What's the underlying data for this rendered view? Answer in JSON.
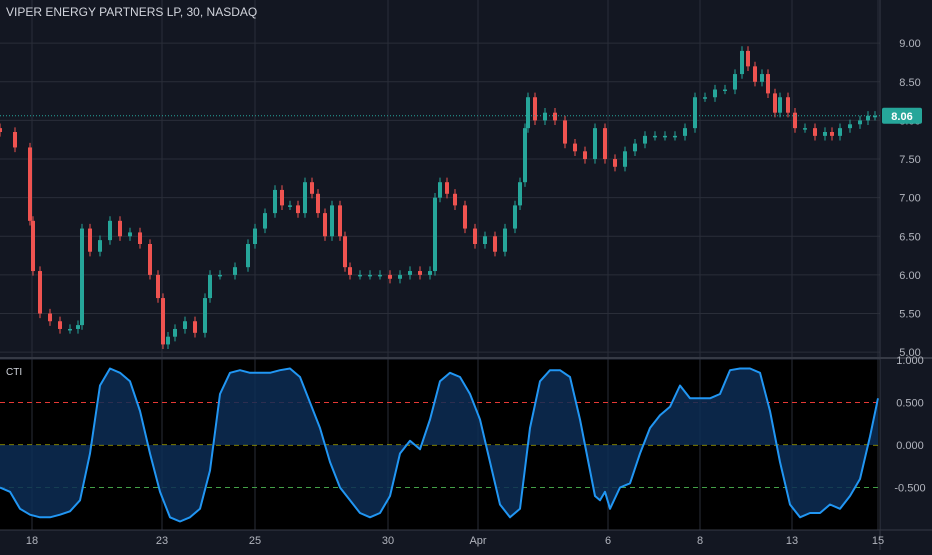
{
  "header": {
    "symbol_title": "VIPER ENERGY PARTNERS LP, 30, NASDAQ"
  },
  "indicator": {
    "label": "CTI"
  },
  "last_price": "8.06",
  "colors": {
    "background": "#131722",
    "grid": "#2a2e39",
    "candle_up": "#26a69a",
    "candle_down": "#ef5350",
    "cti_line": "#2196f3",
    "cti_fill": "#0d2d55",
    "level_red": "#e53935",
    "level_yellow": "#d4d400",
    "level_green": "#43a047",
    "price_line": "#26a69a"
  },
  "chart_data": [
    {
      "type": "candlestick",
      "title": "VIPER ENERGY PARTNERS LP, 30, NASDAQ",
      "xlim": [
        0,
        880
      ],
      "ylim": [
        4.95,
        9.3
      ],
      "y_ticks": [
        "9.00",
        "8.50",
        "8.00",
        "7.50",
        "7.00",
        "6.50",
        "6.00",
        "5.50",
        "5.00"
      ],
      "y_tick_values": [
        9.0,
        8.5,
        8.0,
        7.5,
        7.0,
        6.5,
        6.0,
        5.5,
        5.0
      ],
      "x_ticks": [
        "18",
        "23",
        "25",
        "30",
        "Apr",
        "6",
        "8",
        "13",
        "15"
      ],
      "x_tick_positions": [
        32,
        162,
        255,
        388,
        478,
        608,
        700,
        792,
        878
      ],
      "last_price": 8.06,
      "grid": true,
      "series": [
        {
          "name": "close",
          "x": [
            0,
            15,
            30,
            33,
            40,
            50,
            60,
            70,
            78,
            82,
            90,
            100,
            110,
            120,
            130,
            140,
            150,
            158,
            163,
            168,
            175,
            185,
            195,
            205,
            210,
            220,
            235,
            248,
            255,
            265,
            275,
            282,
            290,
            298,
            305,
            312,
            318,
            325,
            332,
            340,
            345,
            350,
            360,
            370,
            380,
            390,
            400,
            410,
            420,
            430,
            435,
            440,
            447,
            455,
            465,
            475,
            485,
            495,
            505,
            515,
            520,
            525,
            528,
            535,
            545,
            555,
            565,
            575,
            585,
            595,
            605,
            615,
            625,
            635,
            645,
            655,
            665,
            675,
            685,
            695,
            705,
            715,
            725,
            735,
            742,
            748,
            755,
            762,
            768,
            775,
            780,
            788,
            795,
            805,
            815,
            825,
            832,
            840,
            850,
            860,
            868,
            875
          ],
          "values": [
            7.85,
            7.65,
            6.7,
            6.05,
            5.5,
            5.4,
            5.3,
            5.3,
            5.35,
            6.6,
            6.3,
            6.45,
            6.7,
            6.5,
            6.55,
            6.4,
            6.0,
            5.7,
            5.1,
            5.2,
            5.3,
            5.4,
            5.25,
            5.7,
            6.0,
            6.0,
            6.1,
            6.4,
            6.6,
            6.8,
            7.1,
            6.9,
            6.9,
            6.8,
            7.2,
            7.05,
            6.8,
            6.5,
            6.9,
            6.5,
            6.1,
            6.0,
            6.0,
            6.0,
            6.0,
            5.95,
            6.0,
            6.05,
            6.0,
            6.05,
            7.0,
            7.2,
            7.05,
            6.9,
            6.6,
            6.4,
            6.5,
            6.3,
            6.6,
            6.9,
            7.2,
            7.9,
            8.3,
            8.0,
            8.1,
            8.0,
            7.7,
            7.6,
            7.5,
            7.9,
            7.5,
            7.4,
            7.6,
            7.7,
            7.8,
            7.8,
            7.8,
            7.8,
            7.9,
            8.3,
            8.3,
            8.4,
            8.4,
            8.6,
            8.9,
            8.7,
            8.5,
            8.6,
            8.35,
            8.1,
            8.3,
            8.1,
            7.9,
            7.9,
            7.8,
            7.85,
            7.8,
            7.9,
            7.95,
            8.0,
            8.06,
            8.06
          ]
        }
      ]
    },
    {
      "type": "line",
      "title": "CTI",
      "ylim": [
        -1.0,
        1.0
      ],
      "y_ticks": [
        "1.000",
        "0.500",
        "0.000",
        "-0.500"
      ],
      "y_tick_values": [
        1.0,
        0.5,
        0.0,
        -0.5
      ],
      "levels": [
        0.5,
        0.0,
        -0.5
      ],
      "grid": true,
      "series": [
        {
          "name": "CTI",
          "x": [
            0,
            10,
            20,
            30,
            40,
            50,
            60,
            70,
            80,
            90,
            100,
            110,
            120,
            130,
            140,
            150,
            160,
            170,
            180,
            190,
            200,
            210,
            220,
            230,
            240,
            250,
            260,
            270,
            280,
            290,
            300,
            310,
            320,
            330,
            340,
            350,
            360,
            370,
            380,
            390,
            400,
            410,
            420,
            430,
            440,
            450,
            460,
            470,
            480,
            490,
            500,
            510,
            520,
            530,
            540,
            550,
            560,
            570,
            580,
            590,
            595,
            600,
            605,
            610,
            620,
            630,
            640,
            650,
            660,
            670,
            680,
            690,
            700,
            710,
            720,
            730,
            740,
            750,
            760,
            770,
            780,
            790,
            800,
            810,
            820,
            830,
            840,
            850,
            860,
            870,
            878
          ],
          "values": [
            -0.5,
            -0.55,
            -0.75,
            -0.82,
            -0.85,
            -0.85,
            -0.82,
            -0.78,
            -0.65,
            -0.1,
            0.7,
            0.9,
            0.85,
            0.75,
            0.4,
            -0.1,
            -0.55,
            -0.85,
            -0.9,
            -0.85,
            -0.75,
            -0.3,
            0.6,
            0.85,
            0.88,
            0.85,
            0.85,
            0.85,
            0.88,
            0.9,
            0.8,
            0.5,
            0.2,
            -0.2,
            -0.5,
            -0.65,
            -0.8,
            -0.85,
            -0.8,
            -0.6,
            -0.1,
            0.05,
            -0.05,
            0.3,
            0.75,
            0.85,
            0.8,
            0.6,
            0.3,
            -0.2,
            -0.7,
            -0.85,
            -0.75,
            0.2,
            0.75,
            0.88,
            0.88,
            0.8,
            0.3,
            -0.3,
            -0.6,
            -0.65,
            -0.55,
            -0.75,
            -0.5,
            -0.45,
            -0.1,
            0.2,
            0.35,
            0.45,
            0.7,
            0.55,
            0.55,
            0.55,
            0.6,
            0.88,
            0.9,
            0.9,
            0.85,
            0.4,
            -0.2,
            -0.7,
            -0.85,
            -0.8,
            -0.8,
            -0.7,
            -0.75,
            -0.6,
            -0.4,
            0.1,
            0.55
          ]
        }
      ]
    }
  ]
}
